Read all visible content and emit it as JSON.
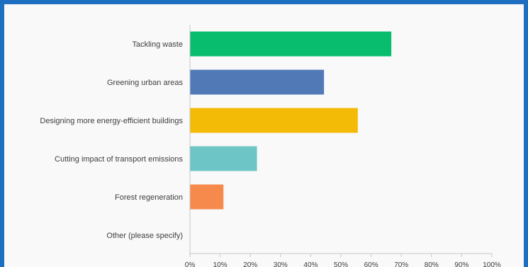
{
  "chart_data": {
    "type": "bar",
    "orientation": "horizontal",
    "categories": [
      "Tackling waste",
      "Greening urban areas",
      "Designing more energy-efficient buildings",
      "Cutting impact of transport emissions",
      "Forest regeneration",
      "Other (please specify)"
    ],
    "values": [
      66.7,
      44.4,
      55.6,
      22.2,
      11.1,
      0
    ],
    "colors": [
      "#08bd6e",
      "#5079b6",
      "#f3bb06",
      "#6ec5c6",
      "#f58a4c",
      "#aaaaaa"
    ],
    "xlim": [
      0,
      100
    ],
    "xticks": [
      "0%",
      "10%",
      "20%",
      "30%",
      "40%",
      "50%",
      "60%",
      "70%",
      "80%",
      "90%",
      "100%"
    ],
    "grid": false,
    "legend": "none"
  }
}
